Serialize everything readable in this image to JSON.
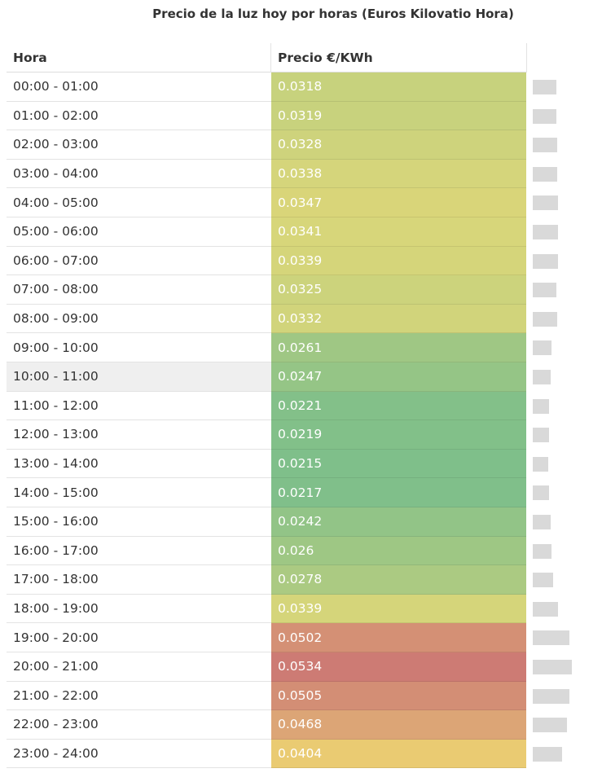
{
  "title": "Precio de la luz hoy por horas (Euros Kilovatio Hora)",
  "table": {
    "headers": [
      "Hora",
      "Precio €/KWh"
    ],
    "rows": [
      [
        "00:00 - 01:00",
        0.0318
      ],
      [
        "01:00 - 02:00",
        0.0319
      ],
      [
        "02:00 - 03:00",
        0.0328
      ],
      [
        "03:00 - 04:00",
        0.0338
      ],
      [
        "04:00 - 05:00",
        0.0347
      ],
      [
        "05:00 - 06:00",
        0.0341
      ],
      [
        "06:00 - 07:00",
        0.0339
      ],
      [
        "07:00 - 08:00",
        0.0325
      ],
      [
        "08:00 - 09:00",
        0.0332
      ],
      [
        "09:00 - 10:00",
        0.0261
      ],
      [
        "10:00 - 11:00",
        0.0247
      ],
      [
        "11:00 - 12:00",
        0.0221
      ],
      [
        "12:00 - 13:00",
        0.0219
      ],
      [
        "13:00 - 14:00",
        0.0215
      ],
      [
        "14:00 - 15:00",
        0.0217
      ],
      [
        "15:00 - 16:00",
        0.0242
      ],
      [
        "16:00 - 17:00",
        0.026
      ],
      [
        "17:00 - 18:00",
        0.0278
      ],
      [
        "18:00 - 19:00",
        0.0339
      ],
      [
        "19:00 - 20:00",
        0.0502
      ],
      [
        "20:00 - 21:00",
        0.0534
      ],
      [
        "21:00 - 22:00",
        0.0505
      ],
      [
        "22:00 - 23:00",
        0.0468
      ],
      [
        "23:00 - 24:00",
        0.0404
      ]
    ]
  }
}
